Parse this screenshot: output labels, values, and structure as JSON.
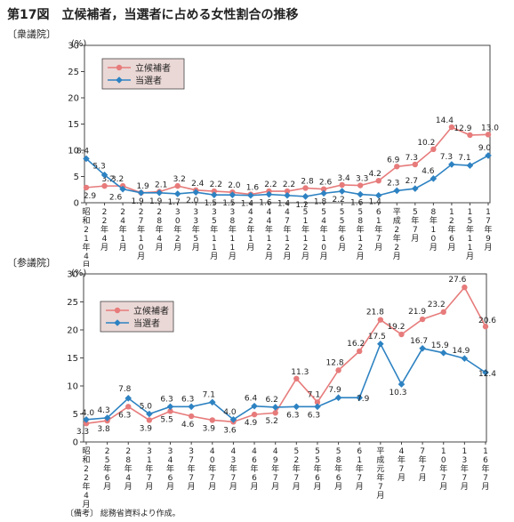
{
  "figure_title": "第17図　立候補者，当選者に占める女性割合の推移",
  "note": "〔備考〕 総務省資料より作成。",
  "legend_labels": [
    "立候補者",
    "当選者"
  ],
  "colors": {
    "candidates": "#e77b7b",
    "elected": "#2d82c2",
    "legend_bg": "#ead8d6",
    "frame": "#444444"
  },
  "chart_data": [
    {
      "type": "line",
      "panel_label": "〔衆議院〕",
      "unit_label": "(%)",
      "ylim": [
        0,
        30
      ],
      "yticks": [
        0,
        5,
        10,
        15,
        20,
        25,
        30
      ],
      "legend_position": "top-left",
      "categories": [
        "昭和21年4月",
        "22年4月",
        "24年1月",
        "27年10月",
        "28年4月",
        "30年2月",
        "33年5月",
        "35年11月",
        "38年11月",
        "42年1月",
        "44年12月",
        "47年12月",
        "51年12月",
        "54年10月",
        "55年6月",
        "58年12月",
        "61年7月",
        "平成2年2月",
        "5年7月",
        "8年10月",
        "12年6月",
        "15年11月",
        "17年9月"
      ],
      "series": [
        {
          "name": "立候補者",
          "key": "candidates",
          "values": [
            2.9,
            3.2,
            3.2,
            1.9,
            2.1,
            3.2,
            2.4,
            2.2,
            2.0,
            1.6,
            2.2,
            2.2,
            2.8,
            2.6,
            3.4,
            3.3,
            4.2,
            6.9,
            7.3,
            10.2,
            14.4,
            12.9,
            13.0
          ],
          "labels": [
            "2.9",
            "3.2",
            "3.2",
            "1.9",
            "2.1",
            "3.2",
            "2.4",
            "2.2",
            "2.0",
            "1.6",
            "2.2",
            "2.2",
            "2.8",
            "2.6",
            "3.4",
            "3.3",
            "4.2",
            "6.9",
            "7.3",
            "10.2",
            "14.4",
            "12.9",
            "13.0"
          ]
        },
        {
          "name": "当選者",
          "key": "elected",
          "values": [
            8.4,
            5.3,
            2.6,
            1.9,
            1.9,
            1.7,
            2.0,
            1.5,
            1.5,
            1.4,
            1.6,
            1.4,
            1.2,
            1.8,
            2.2,
            1.6,
            1.4,
            2.3,
            2.7,
            4.6,
            7.3,
            7.1,
            9.0
          ],
          "labels": [
            "8.4",
            "5.3",
            "2.6",
            "1.9",
            "1.9",
            "1.7",
            "2.0",
            "1.5",
            "1.5",
            "1.4",
            "1.6",
            "1.4",
            "1.2",
            "1.8",
            "2.2",
            "1.6",
            "1.4",
            "2.3",
            "2.7",
            "4.6",
            "7.3",
            "7.1",
            "9.0"
          ]
        }
      ]
    },
    {
      "type": "line",
      "panel_label": "〔参議院〕",
      "unit_label": "(%)",
      "ylim": [
        0,
        30
      ],
      "yticks": [
        0,
        5,
        10,
        15,
        20,
        25,
        30
      ],
      "legend_position": "top-left",
      "categories": [
        "昭和22年4月",
        "25年6月",
        "28年4月",
        "31年7月",
        "34年6月",
        "37年7月",
        "40年7月",
        "43年7月",
        "46年6月",
        "49年7月",
        "52年7月",
        "55年6月",
        "58年6月",
        "61年7月",
        "平成元年7月",
        "4年7月",
        "7年7月",
        "10年7月",
        "13年7月",
        "16年7月"
      ],
      "series": [
        {
          "name": "立候補者",
          "key": "candidates",
          "values": [
            3.3,
            3.8,
            6.3,
            3.9,
            5.5,
            4.6,
            3.9,
            3.6,
            4.9,
            5.2,
            11.3,
            7.1,
            12.8,
            16.2,
            21.8,
            19.2,
            21.9,
            23.2,
            27.6,
            20.6
          ],
          "labels": [
            "3.3",
            "3.8",
            "6.3",
            "3.9",
            "5.5",
            "4.6",
            "3.9",
            "3.6",
            "4.9",
            "5.2",
            "11.3",
            "7.1",
            "12.8",
            "16.2",
            "21.8",
            "19.2",
            "21.9",
            "23.2",
            "27.6",
            "20.6"
          ]
        },
        {
          "name": "当選者",
          "key": "elected",
          "values": [
            4.0,
            4.3,
            7.8,
            5.0,
            6.3,
            6.3,
            7.1,
            4.0,
            6.4,
            6.2,
            6.3,
            6.3,
            7.9,
            7.9,
            17.5,
            10.3,
            16.7,
            15.9,
            14.9,
            12.4
          ],
          "labels": [
            "4.0",
            "4.3",
            "7.8",
            "5.0",
            "6.3",
            "6.3",
            "7.1",
            "4.0",
            "6.4",
            "6.2",
            "6.3",
            "6.3",
            "7.9",
            "7.9",
            "17.5",
            "10.3",
            "16.7",
            "15.9",
            "14.9",
            "12.4"
          ]
        }
      ]
    }
  ]
}
